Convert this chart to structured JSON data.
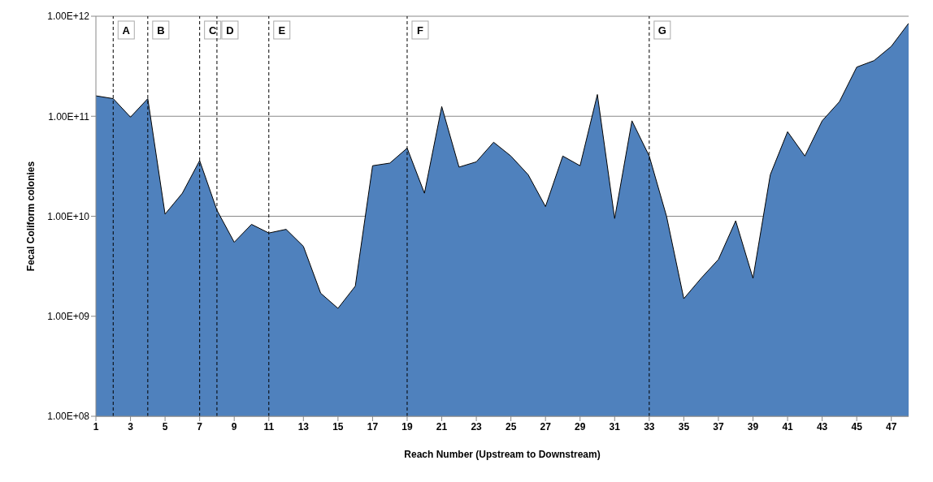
{
  "chart_data": {
    "type": "area",
    "xlabel": "Reach Number  (Upstream to Downstream)",
    "ylabel": "Fecal Coliform colonies",
    "x": [
      1,
      2,
      3,
      4,
      5,
      6,
      7,
      8,
      9,
      10,
      11,
      12,
      13,
      14,
      15,
      16,
      17,
      18,
      19,
      20,
      21,
      22,
      23,
      24,
      25,
      26,
      27,
      28,
      29,
      30,
      31,
      32,
      33,
      34,
      35,
      36,
      37,
      38,
      39,
      40,
      41,
      42,
      43,
      44,
      45,
      46,
      47,
      48
    ],
    "series": [
      {
        "color": "#4f81bd",
        "values": [
          160000000000.0,
          150000000000.0,
          98000000000.0,
          150000000000.0,
          10500000000.0,
          17000000000.0,
          36000000000.0,
          11500000000.0,
          5500000000.0,
          8300000000.0,
          6800000000.0,
          7400000000.0,
          5000000000.0,
          1700000000.0,
          1200000000.0,
          2000000000.0,
          32000000000.0,
          34000000000.0,
          48000000000.0,
          17000000000.0,
          125000000000.0,
          31000000000.0,
          35000000000.0,
          55000000000.0,
          40000000000.0,
          26000000000.0,
          12500000000.0,
          40000000000.0,
          32000000000.0,
          165000000000.0,
          9500000000.0,
          90000000000.0,
          40000000000.0,
          10000000000.0,
          1500000000.0,
          2400000000.0,
          3700000000.0,
          9000000000.0,
          2400000000.0,
          26000000000.0,
          70000000000.0,
          40000000000.0,
          90000000000.0,
          140000000000.0,
          310000000000.0,
          360000000000.0,
          500000000000.0,
          850000000000.0
        ]
      }
    ],
    "log": "y",
    "ylim": [
      100000000.0,
      1000000000000.0
    ],
    "yticks": [
      {
        "value": 100000000.0,
        "label": "1.00E+08"
      },
      {
        "value": 1000000000.0,
        "label": "1.00E+09"
      },
      {
        "value": 10000000000.0,
        "label": "1.00E+10"
      },
      {
        "value": 100000000000.0,
        "label": "1.00E+11"
      },
      {
        "value": 1000000000000.0,
        "label": "1.00E+12"
      }
    ],
    "xlim": [
      1,
      48
    ],
    "xticks": [
      1,
      3,
      5,
      7,
      9,
      11,
      13,
      15,
      17,
      19,
      21,
      23,
      25,
      27,
      29,
      31,
      33,
      35,
      37,
      39,
      41,
      43,
      45,
      47
    ],
    "grid": "y",
    "ref_lines": [
      {
        "axis": "x",
        "value": 2,
        "label": "A",
        "line_style": "dashed"
      },
      {
        "axis": "x",
        "value": 4,
        "label": "B",
        "line_style": "dashed"
      },
      {
        "axis": "x",
        "value": 7,
        "label": "C",
        "line_style": "dashed"
      },
      {
        "axis": "x",
        "value": 8,
        "label": "D",
        "line_style": "dashed"
      },
      {
        "axis": "x",
        "value": 11,
        "label": "E",
        "line_style": "dashed"
      },
      {
        "axis": "x",
        "value": 19,
        "label": "F",
        "line_style": "dashed"
      },
      {
        "axis": "x",
        "value": 33,
        "label": "G",
        "line_style": "dashed"
      }
    ]
  }
}
